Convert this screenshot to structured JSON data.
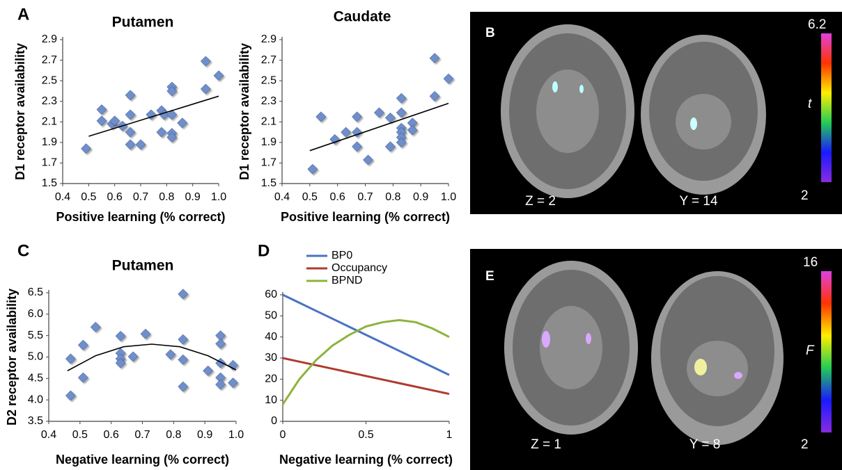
{
  "chart_data": [
    {
      "type": "scatter",
      "panel_label": "A",
      "title": "Putamen",
      "x_label": "Positive learning (% correct)",
      "y_label": "D1 receptor availability",
      "x": [
        0.49,
        0.55,
        0.55,
        0.59,
        0.6,
        0.63,
        0.66,
        0.66,
        0.66,
        0.66,
        0.7,
        0.74,
        0.78,
        0.78,
        0.79,
        0.82,
        0.82,
        0.82,
        0.82,
        0.82,
        0.86,
        0.95,
        0.95,
        1.0
      ],
      "values": [
        1.84,
        2.22,
        2.11,
        2.08,
        2.11,
        2.06,
        2.36,
        2.17,
        2.0,
        1.88,
        1.88,
        2.17,
        2.21,
        2.0,
        2.17,
        2.44,
        2.4,
        2.17,
        1.99,
        1.95,
        2.09,
        2.69,
        2.42,
        2.55
      ],
      "color": "#6f8fcb",
      "fit": {
        "x": [
          0.5,
          1.0
        ],
        "y": [
          1.96,
          2.35
        ]
      },
      "xlim": [
        0.4,
        1.0
      ],
      "xticks": [
        0.4,
        0.5,
        0.6,
        0.7,
        0.8,
        0.9,
        {
          "value": 1.0,
          "label": "1.0"
        }
      ],
      "ylim": [
        1.5,
        2.9
      ],
      "yticks": [
        1.5,
        1.7,
        1.9,
        2.1,
        2.3,
        2.5,
        2.7,
        2.9
      ]
    },
    {
      "type": "scatter",
      "title": "Caudate",
      "x_label": "Positive learning (% correct)",
      "y_label": "D1 receptor availability",
      "x": [
        0.51,
        0.54,
        0.59,
        0.63,
        0.67,
        0.67,
        0.67,
        0.71,
        0.75,
        0.79,
        0.79,
        0.83,
        0.83,
        0.83,
        0.83,
        0.83,
        0.83,
        0.87,
        0.87,
        0.95,
        0.95,
        1.0
      ],
      "values": [
        1.64,
        2.15,
        1.93,
        2.0,
        2.0,
        2.15,
        1.86,
        1.73,
        2.19,
        2.14,
        1.86,
        2.33,
        2.19,
        2.04,
        2.0,
        1.95,
        1.9,
        2.09,
        2.02,
        2.72,
        2.35,
        2.52
      ],
      "color": "#6f8fcb",
      "fit": {
        "x": [
          0.5,
          1.0
        ],
        "y": [
          1.82,
          2.28
        ]
      },
      "xlim": [
        0.4,
        1.0
      ],
      "xticks": [
        0.4,
        0.5,
        0.6,
        0.7,
        0.8,
        0.9,
        {
          "value": 1.0,
          "label": "1.0"
        }
      ],
      "ylim": [
        1.5,
        2.9
      ],
      "yticks": [
        1.5,
        1.7,
        1.9,
        2.1,
        2.3,
        2.5,
        2.7,
        2.9
      ]
    },
    {
      "type": "scatter",
      "panel_label": "C",
      "title": "Putamen",
      "x_label": "Negative learning (% correct)",
      "y_label": "D2 receptor availability",
      "x": [
        0.47,
        0.47,
        0.51,
        0.51,
        0.55,
        0.63,
        0.63,
        0.63,
        0.63,
        0.67,
        0.71,
        0.79,
        0.83,
        0.83,
        0.83,
        0.83,
        0.91,
        0.95,
        0.95,
        0.95,
        0.95,
        0.95,
        0.99,
        0.99
      ],
      "values": [
        4.96,
        4.1,
        5.28,
        4.52,
        5.7,
        5.49,
        5.09,
        4.96,
        4.86,
        5.01,
        5.54,
        5.06,
        6.47,
        5.41,
        4.94,
        4.31,
        4.68,
        5.5,
        5.31,
        4.86,
        4.52,
        4.36,
        4.81,
        4.4
      ],
      "color": "#6f8fcb",
      "fit": {
        "x": [
          0.46,
          0.55,
          0.64,
          0.73,
          0.82,
          0.91,
          1.0
        ],
        "y": [
          4.68,
          5.03,
          5.24,
          5.3,
          5.24,
          5.03,
          4.7
        ]
      },
      "xlim": [
        0.4,
        1.0
      ],
      "xticks": [
        0.4,
        0.5,
        0.6,
        0.7,
        0.8,
        0.9,
        {
          "value": 1.0,
          "label": "1.0"
        }
      ],
      "ylim": [
        3.5,
        6.5
      ],
      "yticks": [
        3.5,
        {
          "value": 4.0,
          "label": "4.0"
        },
        4.5,
        {
          "value": 5.0,
          "label": "5.0"
        },
        5.5,
        {
          "value": 6.0,
          "label": "6.0"
        },
        6.5
      ]
    },
    {
      "type": "line",
      "panel_label": "D",
      "x_label": "Negative learning (% correct)",
      "x": [
        0,
        0.1,
        0.2,
        0.3,
        0.4,
        0.5,
        0.6,
        0.7,
        0.8,
        0.9,
        1
      ],
      "series": [
        {
          "name": "BP0",
          "color": "#4a72c4",
          "values": [
            60,
            56.2,
            52.4,
            48.6,
            44.8,
            41,
            37.2,
            33.4,
            29.6,
            25.8,
            22
          ]
        },
        {
          "name": "Occupancy",
          "color": "#b03a2e",
          "values": [
            30,
            28.3,
            26.6,
            24.9,
            23.2,
            21.5,
            19.8,
            18.1,
            16.4,
            14.7,
            13
          ]
        },
        {
          "name": "BPND",
          "color": "#8db33c",
          "values": [
            8,
            20,
            29,
            36,
            41,
            45,
            47,
            48,
            47,
            44,
            40
          ]
        }
      ],
      "xlim": [
        0,
        1
      ],
      "xticks": [
        0,
        0.5,
        1
      ],
      "ylim": [
        0,
        60
      ],
      "yticks": [
        0,
        10,
        20,
        30,
        40,
        50,
        60
      ]
    }
  ],
  "images": [
    {
      "letter": "B",
      "slice_labels": [
        "Z = 2",
        "Y = 14"
      ],
      "colorbar": {
        "max": "6.2",
        "label": "t",
        "min": "2"
      }
    },
    {
      "letter": "E",
      "slice_labels": [
        "Z = 1",
        "Y = 8"
      ],
      "colorbar": {
        "max": "16",
        "label": "F",
        "min": "2"
      }
    }
  ]
}
